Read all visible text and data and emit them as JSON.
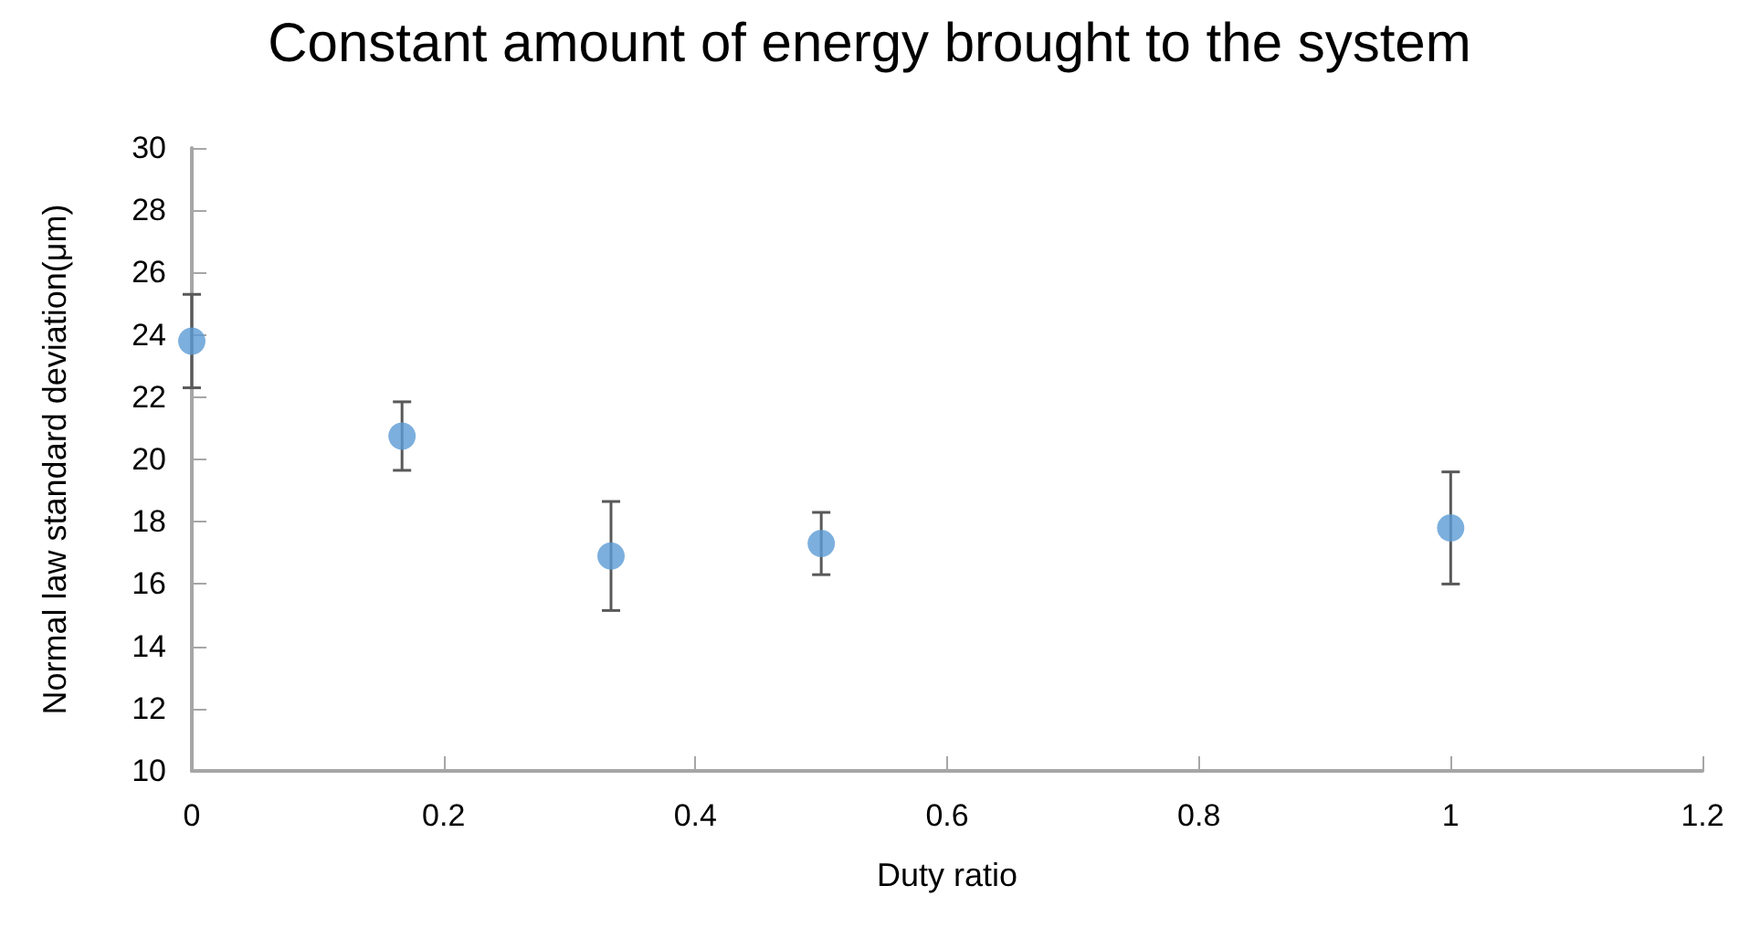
{
  "chart_data": {
    "type": "scatter",
    "title": "Constant amount of energy brought to the system",
    "xlabel": "Duty ratio",
    "ylabel": "Normal law standard deviation(μm)",
    "x": [
      0,
      0.167,
      0.333,
      0.5,
      1
    ],
    "series": [
      {
        "color": "#5b9bd5",
        "values": [
          23.8,
          20.75,
          16.9,
          17.3,
          17.8
        ],
        "errors": [
          1.5,
          1.1,
          1.75,
          1.0,
          1.8
        ]
      }
    ],
    "xlim": [
      0,
      1.2
    ],
    "xticks": [
      0,
      0.2,
      0.4,
      0.6,
      0.8,
      1,
      1.2
    ],
    "ylim": [
      10,
      30
    ],
    "yticks": [
      10,
      12,
      14,
      16,
      18,
      20,
      22,
      24,
      26,
      28,
      30
    ],
    "grid": false,
    "marker": "circle"
  }
}
